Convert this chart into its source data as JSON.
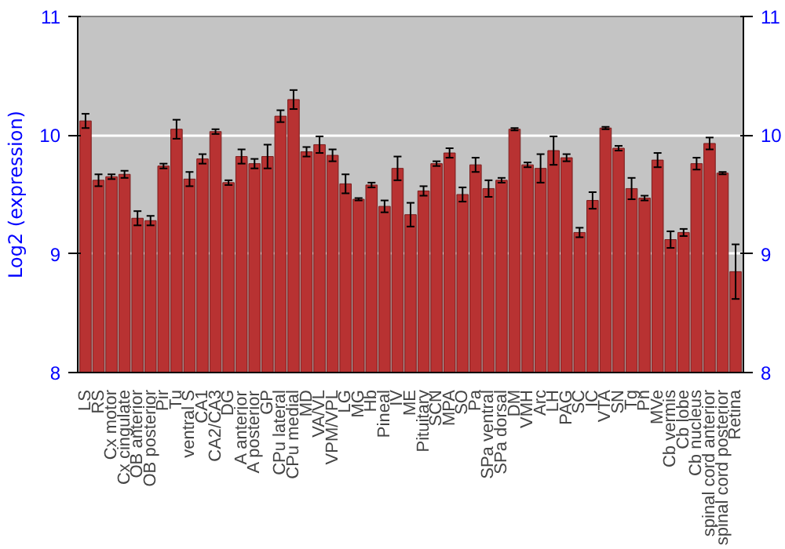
{
  "chart_data": {
    "type": "bar",
    "ylabel": "Log2 (expression)",
    "categories": [
      "LS",
      "RS",
      "Cx motor",
      "Cx cingulate",
      "OB anterior",
      "OB posterior",
      "Pir",
      "Tu",
      "ventral S",
      "CA1",
      "CA2/CA3",
      "DG",
      "A anterior",
      "A posterior",
      "GP",
      "CPu lateral",
      "CPu medial",
      "MD",
      "VA/VL",
      "VPM/VPL",
      "LG",
      "MG",
      "Hb",
      "Pineal",
      "IV",
      "ME",
      "Pituitary",
      "SCN",
      "MPA",
      "SO",
      "Pa",
      "SPa ventral",
      "SPa dorsal",
      "DM",
      "VMH",
      "Arc",
      "LH",
      "PAG",
      "SC",
      "IC",
      "VTA",
      "SN",
      "Tg",
      "Pn",
      "MVe",
      "Cb vermis",
      "Cb lobe",
      "Cb nucleus",
      "spinal cord anterior",
      "spinal cord posterior",
      "Retina"
    ],
    "values": [
      10.12,
      9.62,
      9.65,
      9.67,
      9.3,
      9.28,
      9.74,
      10.05,
      9.63,
      9.8,
      10.03,
      9.6,
      9.82,
      9.76,
      9.82,
      10.16,
      10.3,
      9.86,
      9.92,
      9.83,
      9.59,
      9.46,
      9.58,
      9.4,
      9.72,
      9.33,
      9.53,
      9.76,
      9.85,
      9.5,
      9.75,
      9.55,
      9.62,
      10.05,
      9.75,
      9.72,
      9.87,
      9.81,
      9.18,
      9.45,
      10.06,
      9.89,
      9.55,
      9.47,
      9.79,
      9.12,
      9.18,
      9.76,
      9.93,
      9.68,
      8.85
    ],
    "errors": [
      0.06,
      0.05,
      0.02,
      0.03,
      0.06,
      0.04,
      0.02,
      0.08,
      0.06,
      0.04,
      0.02,
      0.02,
      0.06,
      0.04,
      0.1,
      0.05,
      0.08,
      0.04,
      0.07,
      0.05,
      0.08,
      0.01,
      0.02,
      0.05,
      0.1,
      0.1,
      0.04,
      0.02,
      0.04,
      0.06,
      0.06,
      0.07,
      0.02,
      0.01,
      0.02,
      0.12,
      0.12,
      0.03,
      0.04,
      0.07,
      0.01,
      0.02,
      0.09,
      0.02,
      0.06,
      0.07,
      0.03,
      0.05,
      0.05,
      0.01,
      0.23
    ],
    "color": "#b83232",
    "ylim": [
      8,
      11
    ],
    "yticks": [
      8,
      9,
      10,
      11
    ],
    "y2lim": [
      8,
      11
    ],
    "y2ticks": [
      8,
      9,
      10,
      11
    ],
    "grid": "y"
  }
}
